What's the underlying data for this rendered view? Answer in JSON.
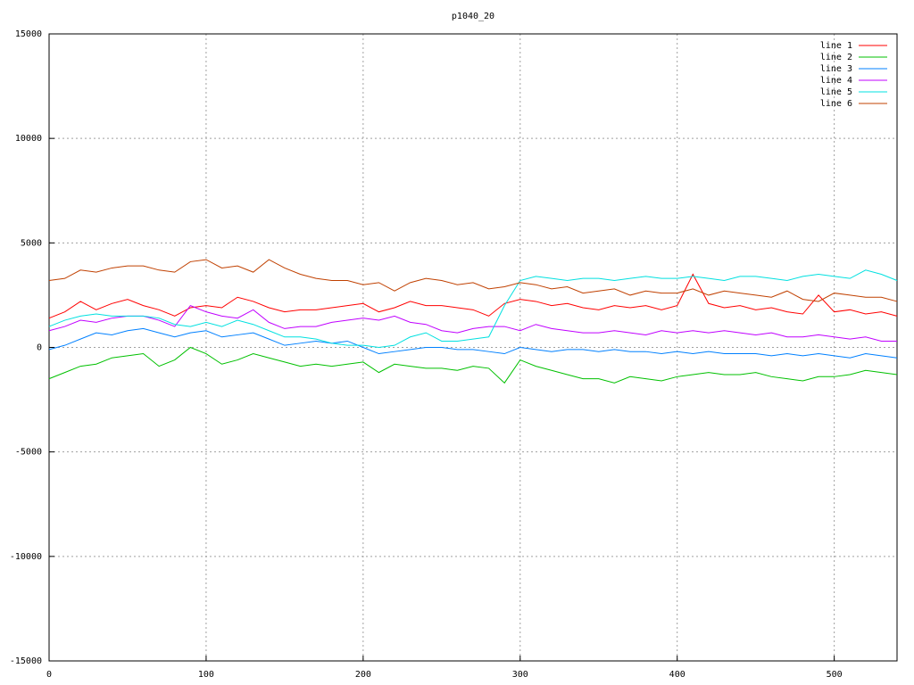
{
  "chart_data": {
    "type": "line",
    "title": "p1040_20",
    "x": [
      0,
      10,
      20,
      30,
      40,
      50,
      60,
      70,
      80,
      90,
      100,
      110,
      120,
      130,
      140,
      150,
      160,
      170,
      180,
      190,
      200,
      210,
      220,
      230,
      240,
      250,
      260,
      270,
      280,
      290,
      300,
      310,
      320,
      330,
      340,
      350,
      360,
      370,
      380,
      390,
      400,
      410,
      420,
      430,
      440,
      450,
      460,
      470,
      480,
      490,
      500,
      510,
      520,
      530,
      540
    ],
    "series": [
      {
        "name": "line 1",
        "color": "#ff0000",
        "values": [
          1400,
          1700,
          2200,
          1800,
          2100,
          2300,
          2000,
          1800,
          1500,
          1900,
          2000,
          1900,
          2400,
          2200,
          1900,
          1700,
          1800,
          1800,
          1900,
          2000,
          2100,
          1700,
          1900,
          2200,
          2000,
          2000,
          1900,
          1800,
          1500,
          2100,
          2300,
          2200,
          2000,
          2100,
          1900,
          1800,
          2000,
          1900,
          2000,
          1800,
          2000,
          3500,
          2100,
          1900,
          2000,
          1800,
          1900,
          1700,
          1600,
          2500,
          1700,
          1800,
          1600,
          1700,
          1500
        ]
      },
      {
        "name": "line 2",
        "color": "#00c000",
        "values": [
          -1500,
          -1200,
          -900,
          -800,
          -500,
          -400,
          -300,
          -900,
          -600,
          0,
          -300,
          -800,
          -600,
          -300,
          -500,
          -700,
          -900,
          -800,
          -900,
          -800,
          -700,
          -1200,
          -800,
          -900,
          -1000,
          -1000,
          -1100,
          -900,
          -1000,
          -1700,
          -600,
          -900,
          -1100,
          -1300,
          -1500,
          -1500,
          -1700,
          -1400,
          -1500,
          -1600,
          -1400,
          -1300,
          -1200,
          -1300,
          -1300,
          -1200,
          -1400,
          -1500,
          -1600,
          -1400,
          -1400,
          -1300,
          -1100,
          -1200,
          -1300
        ]
      },
      {
        "name": "line 3",
        "color": "#0080ff",
        "values": [
          -100,
          100,
          400,
          700,
          600,
          800,
          900,
          700,
          500,
          700,
          800,
          500,
          600,
          700,
          400,
          100,
          200,
          300,
          200,
          300,
          0,
          -300,
          -200,
          -100,
          0,
          0,
          -100,
          -100,
          -200,
          -300,
          0,
          -100,
          -200,
          -100,
          -100,
          -200,
          -100,
          -200,
          -200,
          -300,
          -200,
          -300,
          -200,
          -300,
          -300,
          -300,
          -400,
          -300,
          -400,
          -300,
          -400,
          -500,
          -300,
          -400,
          -500
        ]
      },
      {
        "name": "line 4",
        "color": "#c000ff",
        "values": [
          800,
          1000,
          1300,
          1200,
          1400,
          1500,
          1500,
          1300,
          1000,
          2000,
          1700,
          1500,
          1400,
          1800,
          1200,
          900,
          1000,
          1000,
          1200,
          1300,
          1400,
          1300,
          1500,
          1200,
          1100,
          800,
          700,
          900,
          1000,
          1000,
          800,
          1100,
          900,
          800,
          700,
          700,
          800,
          700,
          600,
          800,
          700,
          800,
          700,
          800,
          700,
          600,
          700,
          500,
          500,
          600,
          500,
          400,
          500,
          300,
          300
        ]
      },
      {
        "name": "line 5",
        "color": "#00e0e0",
        "values": [
          1000,
          1300,
          1500,
          1600,
          1500,
          1500,
          1500,
          1400,
          1100,
          1000,
          1200,
          1000,
          1300,
          1100,
          800,
          500,
          500,
          400,
          200,
          100,
          100,
          0,
          100,
          500,
          700,
          300,
          300,
          400,
          500,
          2000,
          3200,
          3400,
          3300,
          3200,
          3300,
          3300,
          3200,
          3300,
          3400,
          3300,
          3300,
          3400,
          3300,
          3200,
          3400,
          3400,
          3300,
          3200,
          3400,
          3500,
          3400,
          3300,
          3700,
          3500,
          3200
        ]
      },
      {
        "name": "line 6",
        "color": "#c04000",
        "values": [
          3200,
          3300,
          3700,
          3600,
          3800,
          3900,
          3900,
          3700,
          3600,
          4100,
          4200,
          3800,
          3900,
          3600,
          4200,
          3800,
          3500,
          3300,
          3200,
          3200,
          3000,
          3100,
          2700,
          3100,
          3300,
          3200,
          3000,
          3100,
          2800,
          2900,
          3100,
          3000,
          2800,
          2900,
          2600,
          2700,
          2800,
          2500,
          2700,
          2600,
          2600,
          2800,
          2500,
          2700,
          2600,
          2500,
          2400,
          2700,
          2300,
          2200,
          2600,
          2500,
          2400,
          2400,
          2200
        ]
      }
    ],
    "xlim": [
      0,
      540
    ],
    "xticks": [
      0,
      100,
      200,
      300,
      400,
      500
    ],
    "ylim": [
      -15000,
      15000
    ],
    "yticks": [
      -15000,
      -10000,
      -5000,
      0,
      5000,
      10000,
      15000
    ],
    "grid": true,
    "legend": "top-right"
  }
}
